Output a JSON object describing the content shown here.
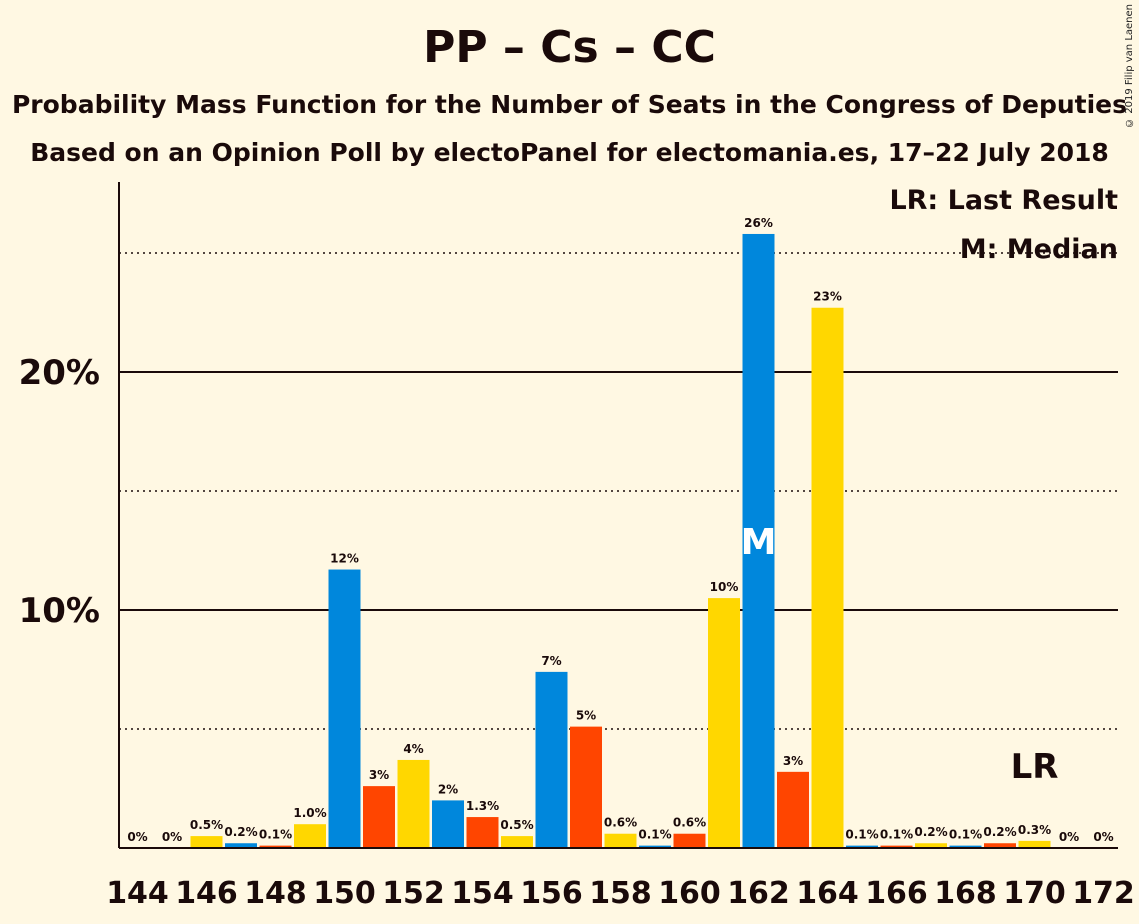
{
  "title": "PP – Cs – CC",
  "subtitle1": "Probability Mass Function for the Number of Seats in the Congress of Deputies",
  "subtitle2": "Based on an Opinion Poll by electoPanel for electomania.es, 17–22 July 2018",
  "copyright": "© 2019 Filip van Laenen",
  "legend": {
    "last_result": "LR: Last Result",
    "median": "M: Median"
  },
  "colors": {
    "pp": "#0087DC",
    "cs": "#EB6109",
    "cc": "#FFD700",
    "csRed": "#FF4500",
    "background": "#FFF8E3"
  },
  "chart_data": {
    "type": "bar",
    "x": [
      144,
      145,
      146,
      147,
      148,
      149,
      150,
      151,
      152,
      153,
      154,
      155,
      156,
      157,
      158,
      159,
      160,
      161,
      162,
      163,
      164,
      165,
      166,
      167,
      168,
      169,
      170,
      171,
      172
    ],
    "values": [
      0,
      0,
      0.5,
      0.2,
      0.1,
      1.0,
      11.7,
      2.6,
      3.7,
      2.0,
      1.3,
      0.5,
      7.4,
      5.1,
      0.6,
      0.1,
      0.6,
      10.5,
      25.8,
      3.2,
      22.7,
      0.1,
      0.1,
      0.2,
      0.1,
      0.2,
      0.3,
      0,
      0
    ],
    "labels": [
      "0%",
      "0%",
      "0.5%",
      "0.2%",
      "0.1%",
      "1.0%",
      "12%",
      "3%",
      "4%",
      "2%",
      "1.3%",
      "0.5%",
      "7%",
      "5%",
      "0.6%",
      "0.1%",
      "0.6%",
      "10%",
      "26%",
      "3%",
      "23%",
      "0.1%",
      "0.1%",
      "0.2%",
      "0.1%",
      "0.2%",
      "0.3%",
      "0%",
      "0%"
    ],
    "bar_colors": [
      "#FFD700",
      "#0087DC",
      "#FFD700",
      "#0087DC",
      "#FF4500",
      "#FFD700",
      "#0087DC",
      "#FF4500",
      "#FFD700",
      "#0087DC",
      "#FF4500",
      "#FFD700",
      "#0087DC",
      "#FF4500",
      "#FFD700",
      "#0087DC",
      "#FF4500",
      "#FFD700",
      "#0087DC",
      "#FF4500",
      "#FFD700",
      "#0087DC",
      "#FF4500",
      "#FFD700",
      "#0087DC",
      "#FF4500",
      "#FFD700",
      "#0087DC",
      "#FF4500"
    ],
    "x_tick_labels": [
      "144",
      "146",
      "148",
      "150",
      "152",
      "154",
      "156",
      "158",
      "160",
      "162",
      "164",
      "166",
      "168",
      "170",
      "172"
    ],
    "y_ticks": [
      {
        "value": 10,
        "label": "10%"
      },
      {
        "value": 20,
        "label": "20%"
      }
    ],
    "minor_gridlines": [
      5,
      15,
      25
    ],
    "ylim": [
      0,
      28
    ],
    "median": 162,
    "median_label": "M",
    "last_result": 170,
    "last_result_label": "LR",
    "legend_position": "top-right"
  }
}
